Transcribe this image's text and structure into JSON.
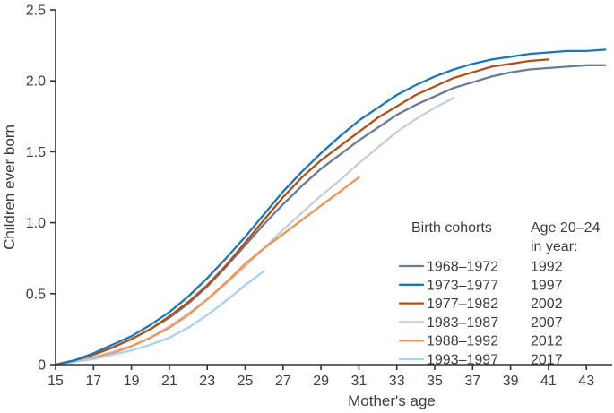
{
  "figure": {
    "background": "#ffffff",
    "text_color": "#3d3d3d",
    "axis_color": "#333333"
  },
  "chart_data": {
    "type": "line",
    "title": "",
    "xlabel": "Mother's age",
    "ylabel": "Children ever born",
    "xlim": [
      15,
      44.5
    ],
    "ylim": [
      0,
      2.5
    ],
    "grid": false,
    "x_ticks": [
      15,
      17,
      19,
      21,
      23,
      25,
      27,
      29,
      31,
      33,
      35,
      37,
      39,
      41,
      43
    ],
    "y_tick_values": [
      0,
      0.5,
      1.0,
      1.5,
      2.0,
      2.5
    ],
    "y_tick_labels": [
      "0",
      "0.5",
      "1.0",
      "1.5",
      "2.0",
      "2.5"
    ],
    "legend": {
      "position": "inside-lower-right",
      "cohorts_title": "Birth cohorts",
      "age_title_line1": "Age 20–24",
      "age_title_line2": "in year:"
    },
    "series": [
      {
        "name": "1968–1972",
        "age_20_24_in_year": "1992",
        "color": "#6a7a99",
        "age_start": 15,
        "age_end": 44,
        "values": [
          0,
          0.03,
          0.07,
          0.12,
          0.18,
          0.25,
          0.33,
          0.43,
          0.55,
          0.69,
          0.84,
          0.99,
          1.13,
          1.26,
          1.38,
          1.48,
          1.58,
          1.67,
          1.76,
          1.83,
          1.89,
          1.95,
          1.99,
          2.03,
          2.06,
          2.08,
          2.09,
          2.1,
          2.11,
          2.11
        ]
      },
      {
        "name": "1973–1977",
        "age_20_24_in_year": "1997",
        "color": "#1778bf",
        "age_start": 15,
        "age_end": 44,
        "values": [
          0,
          0.03,
          0.08,
          0.14,
          0.2,
          0.28,
          0.37,
          0.48,
          0.61,
          0.75,
          0.9,
          1.06,
          1.22,
          1.36,
          1.49,
          1.61,
          1.72,
          1.81,
          1.9,
          1.97,
          2.03,
          2.08,
          2.12,
          2.15,
          2.17,
          2.19,
          2.2,
          2.21,
          2.21,
          2.22
        ]
      },
      {
        "name": "1977–1982",
        "age_20_24_in_year": "2002",
        "color": "#b54e16",
        "age_start": 15,
        "age_end": 41,
        "values": [
          0,
          0.03,
          0.07,
          0.12,
          0.18,
          0.25,
          0.34,
          0.44,
          0.56,
          0.7,
          0.86,
          1.02,
          1.18,
          1.32,
          1.44,
          1.54,
          1.64,
          1.74,
          1.82,
          1.9,
          1.96,
          2.02,
          2.06,
          2.1,
          2.12,
          2.14,
          2.15
        ]
      },
      {
        "name": "1983–1987",
        "age_20_24_in_year": "2007",
        "color": "#c7cdda",
        "age_start": 15,
        "age_end": 36,
        "values": [
          0,
          0.02,
          0.05,
          0.09,
          0.13,
          0.19,
          0.27,
          0.36,
          0.46,
          0.57,
          0.69,
          0.82,
          0.95,
          1.07,
          1.19,
          1.3,
          1.42,
          1.53,
          1.64,
          1.73,
          1.81,
          1.88
        ]
      },
      {
        "name": "1988–1992",
        "age_20_24_in_year": "2012",
        "color": "#f59251",
        "age_start": 15,
        "age_end": 31,
        "values": [
          0,
          0.02,
          0.05,
          0.08,
          0.13,
          0.19,
          0.26,
          0.35,
          0.46,
          0.58,
          0.71,
          0.82,
          0.92,
          1.02,
          1.12,
          1.22,
          1.32
        ]
      },
      {
        "name": "1993–1997",
        "age_20_24_in_year": "2017",
        "color": "#a5d2ee",
        "age_start": 15,
        "age_end": 26,
        "values": [
          0,
          0.02,
          0.04,
          0.07,
          0.1,
          0.14,
          0.19,
          0.26,
          0.35,
          0.45,
          0.56,
          0.66
        ]
      }
    ]
  }
}
